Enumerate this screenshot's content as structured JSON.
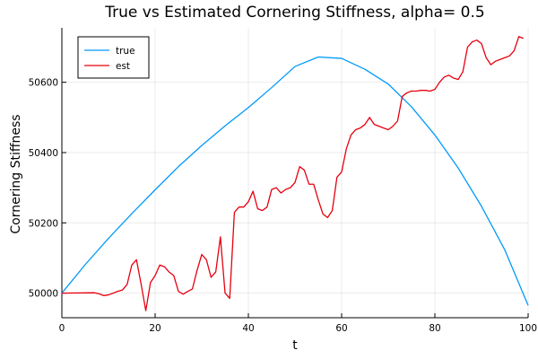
{
  "chart_data": {
    "type": "line",
    "title": "True vs Estimated Cornering Stiffness, alpha= 0.5",
    "xlabel": "t",
    "ylabel": "Cornering Stiffness",
    "xlim": [
      0,
      100
    ],
    "ylim": [
      49930,
      50755
    ],
    "x_ticks": [
      0,
      20,
      40,
      60,
      80,
      100
    ],
    "y_ticks": [
      50000,
      50200,
      50400,
      50600
    ],
    "grid": true,
    "legend_position": "top-left",
    "series": [
      {
        "name": "true",
        "color": "#009af9",
        "x": [
          0,
          5,
          10,
          15,
          20,
          25,
          30,
          35,
          40,
          45,
          50,
          55,
          60,
          65,
          70,
          75,
          80,
          85,
          90,
          95,
          100
        ],
        "y": [
          50000,
          50081,
          50156,
          50226,
          50294,
          50360,
          50420,
          50476,
          50528,
          50585,
          50645,
          50672,
          50668,
          50637,
          50595,
          50530,
          50450,
          50356,
          50247,
          50123,
          49965
        ]
      },
      {
        "name": "est",
        "color": "#e6000f",
        "x": [
          0,
          7,
          8,
          9,
          10,
          11,
          12,
          13,
          14,
          15,
          16,
          17,
          18,
          19,
          20,
          21,
          22,
          23,
          24,
          25,
          26,
          27,
          28,
          29,
          30,
          31,
          32,
          33,
          34,
          35,
          36,
          37,
          38,
          39,
          40,
          41,
          42,
          43,
          44,
          45,
          46,
          47,
          48,
          49,
          50,
          51,
          52,
          53,
          54,
          55,
          56,
          57,
          58,
          59,
          60,
          61,
          62,
          63,
          64,
          65,
          66,
          67,
          68,
          69,
          70,
          71,
          72,
          73,
          74,
          75,
          76,
          77,
          78,
          79,
          80,
          81,
          82,
          83,
          84,
          85,
          86,
          87,
          88,
          89,
          90,
          91,
          92,
          93,
          94,
          95,
          96,
          97,
          98,
          99
        ],
        "y": [
          50000,
          50001,
          49998,
          49993,
          49995,
          50000,
          50005,
          50009,
          50025,
          50080,
          50095,
          50025,
          49950,
          50030,
          50050,
          50080,
          50075,
          50060,
          50050,
          50005,
          49997,
          50005,
          50012,
          50065,
          50110,
          50095,
          50045,
          50060,
          50160,
          50000,
          49985,
          50230,
          50245,
          50245,
          50260,
          50290,
          50240,
          50235,
          50245,
          50295,
          50300,
          50285,
          50295,
          50300,
          50315,
          50360,
          50350,
          50310,
          50310,
          50265,
          50225,
          50215,
          50235,
          50330,
          50345,
          50410,
          50450,
          50465,
          50470,
          50480,
          50500,
          50480,
          50475,
          50470,
          50465,
          50475,
          50490,
          50560,
          50570,
          50575,
          50575,
          50577,
          50577,
          50575,
          50580,
          50600,
          50615,
          50620,
          50612,
          50608,
          50630,
          50700,
          50715,
          50720,
          50710,
          50670,
          50650,
          50660,
          50665,
          50670,
          50675,
          50690,
          50730,
          50725
        ]
      }
    ]
  }
}
